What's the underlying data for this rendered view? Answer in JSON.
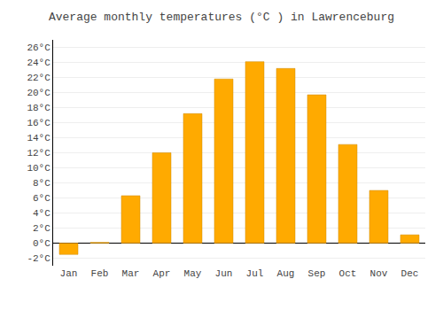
{
  "chart_data": {
    "type": "bar",
    "title": "Average monthly temperatures (°C ) in Lawrenceburg",
    "categories": [
      "Jan",
      "Feb",
      "Mar",
      "Apr",
      "May",
      "Jun",
      "Jul",
      "Aug",
      "Sep",
      "Oct",
      "Nov",
      "Dec"
    ],
    "values": [
      -1.5,
      0.1,
      6.3,
      12.0,
      17.2,
      21.8,
      24.1,
      23.2,
      19.7,
      13.1,
      7.0,
      1.1
    ],
    "color": "#FFAA00",
    "ylim": [
      -3,
      27
    ],
    "yticks": [
      {
        "value": -2,
        "label": "-2°C"
      },
      {
        "value": 0,
        "label": "0°C"
      },
      {
        "value": 2,
        "label": "2°C"
      },
      {
        "value": 4,
        "label": "4°C"
      },
      {
        "value": 6,
        "label": "6°C"
      },
      {
        "value": 8,
        "label": "8°C"
      },
      {
        "value": 10,
        "label": "10°C"
      },
      {
        "value": 12,
        "label": "12°C"
      },
      {
        "value": 14,
        "label": "14°C"
      },
      {
        "value": 16,
        "label": "16°C"
      },
      {
        "value": 18,
        "label": "18°C"
      },
      {
        "value": 20,
        "label": "20°C"
      },
      {
        "value": 22,
        "label": "22°C"
      },
      {
        "value": 24,
        "label": "24°C"
      },
      {
        "value": 26,
        "label": "26°C"
      }
    ],
    "grid": true
  }
}
